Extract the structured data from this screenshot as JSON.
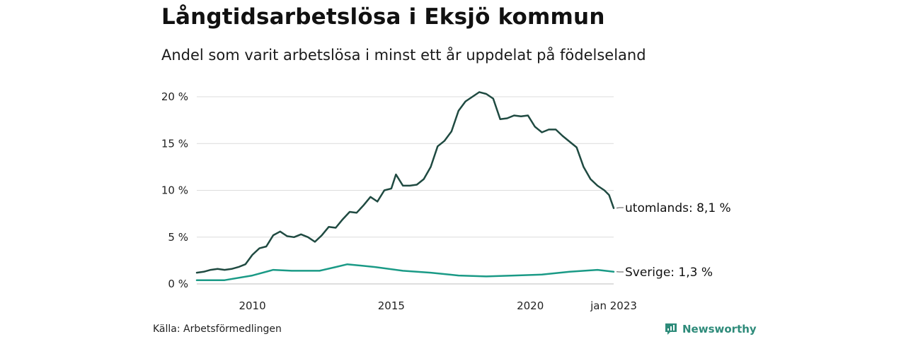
{
  "header": {
    "title": "Långtidsarbetslösa i Eksjö kommun",
    "subtitle": "Andel som varit arbetslösa i minst ett år uppdelat på födelseland"
  },
  "footer": {
    "source": "Källa: Arbetsförmedlingen",
    "brand": "Newsworthy"
  },
  "colors": {
    "foreign": "#1f4a41",
    "sweden": "#1a9a86",
    "grid": "#dcdcdc",
    "brand": "#2e8b7a"
  },
  "chart_data": {
    "type": "line",
    "title": "Långtidsarbetslösa i Eksjö kommun",
    "subtitle": "Andel som varit arbetslösa i minst ett år uppdelat på födelseland",
    "xlabel": "",
    "ylabel": "",
    "xlim": [
      "2008-01",
      "2023-01"
    ],
    "ylim": [
      0,
      21
    ],
    "yticks": [
      0,
      5,
      10,
      15,
      20
    ],
    "ytick_labels": [
      "0 %",
      "5 %",
      "10 %",
      "15 %",
      "20 %"
    ],
    "xticks": [
      "2010-01",
      "2015-01",
      "2020-01",
      "2023-01"
    ],
    "xtick_labels": [
      "2010",
      "2015",
      "2020",
      "jan 2023"
    ],
    "grid": true,
    "legend": "end-labels",
    "series": [
      {
        "key": "foreign",
        "name": "utomlands",
        "end_label": "utomlands: 8,1 %",
        "points": [
          [
            "2008-01",
            1.2
          ],
          [
            "2008-04",
            1.3
          ],
          [
            "2008-07",
            1.5
          ],
          [
            "2008-10",
            1.6
          ],
          [
            "2009-01",
            1.5
          ],
          [
            "2009-04",
            1.6
          ],
          [
            "2009-07",
            1.8
          ],
          [
            "2009-10",
            2.1
          ],
          [
            "2010-01",
            3.1
          ],
          [
            "2010-04",
            3.8
          ],
          [
            "2010-07",
            4.0
          ],
          [
            "2010-10",
            5.2
          ],
          [
            "2011-01",
            5.6
          ],
          [
            "2011-04",
            5.1
          ],
          [
            "2011-07",
            5.0
          ],
          [
            "2011-10",
            5.3
          ],
          [
            "2012-01",
            5.0
          ],
          [
            "2012-04",
            4.5
          ],
          [
            "2012-07",
            5.2
          ],
          [
            "2012-10",
            6.1
          ],
          [
            "2013-01",
            6.0
          ],
          [
            "2013-04",
            6.9
          ],
          [
            "2013-07",
            7.7
          ],
          [
            "2013-10",
            7.6
          ],
          [
            "2014-01",
            8.4
          ],
          [
            "2014-04",
            9.3
          ],
          [
            "2014-07",
            8.8
          ],
          [
            "2014-10",
            10.0
          ],
          [
            "2015-01",
            10.2
          ],
          [
            "2015-03",
            11.7
          ],
          [
            "2015-06",
            10.5
          ],
          [
            "2015-09",
            10.5
          ],
          [
            "2015-12",
            10.6
          ],
          [
            "2016-03",
            11.2
          ],
          [
            "2016-06",
            12.5
          ],
          [
            "2016-09",
            14.7
          ],
          [
            "2016-12",
            15.3
          ],
          [
            "2017-03",
            16.3
          ],
          [
            "2017-06",
            18.5
          ],
          [
            "2017-09",
            19.5
          ],
          [
            "2017-12",
            20.0
          ],
          [
            "2018-03",
            20.5
          ],
          [
            "2018-06",
            20.3
          ],
          [
            "2018-09",
            19.8
          ],
          [
            "2018-12",
            17.6
          ],
          [
            "2019-03",
            17.7
          ],
          [
            "2019-06",
            18.0
          ],
          [
            "2019-09",
            17.9
          ],
          [
            "2019-12",
            18.0
          ],
          [
            "2020-03",
            16.8
          ],
          [
            "2020-06",
            16.2
          ],
          [
            "2020-09",
            16.5
          ],
          [
            "2020-12",
            16.5
          ],
          [
            "2021-03",
            15.8
          ],
          [
            "2021-06",
            15.2
          ],
          [
            "2021-09",
            14.6
          ],
          [
            "2021-12",
            12.5
          ],
          [
            "2022-03",
            11.2
          ],
          [
            "2022-06",
            10.5
          ],
          [
            "2022-09",
            10.0
          ],
          [
            "2022-11",
            9.5
          ],
          [
            "2023-01",
            8.1
          ]
        ]
      },
      {
        "key": "sweden",
        "name": "Sverige",
        "end_label": "Sverige: 1,3 %",
        "points": [
          [
            "2008-01",
            0.4
          ],
          [
            "2009-01",
            0.4
          ],
          [
            "2010-01",
            0.9
          ],
          [
            "2010-10",
            1.5
          ],
          [
            "2011-06",
            1.4
          ],
          [
            "2012-06",
            1.4
          ],
          [
            "2013-01",
            1.8
          ],
          [
            "2013-06",
            2.1
          ],
          [
            "2014-06",
            1.8
          ],
          [
            "2015-06",
            1.4
          ],
          [
            "2016-06",
            1.2
          ],
          [
            "2017-06",
            0.9
          ],
          [
            "2018-06",
            0.8
          ],
          [
            "2019-06",
            0.9
          ],
          [
            "2020-06",
            1.0
          ],
          [
            "2021-06",
            1.3
          ],
          [
            "2022-06",
            1.5
          ],
          [
            "2023-01",
            1.3
          ]
        ]
      }
    ]
  }
}
